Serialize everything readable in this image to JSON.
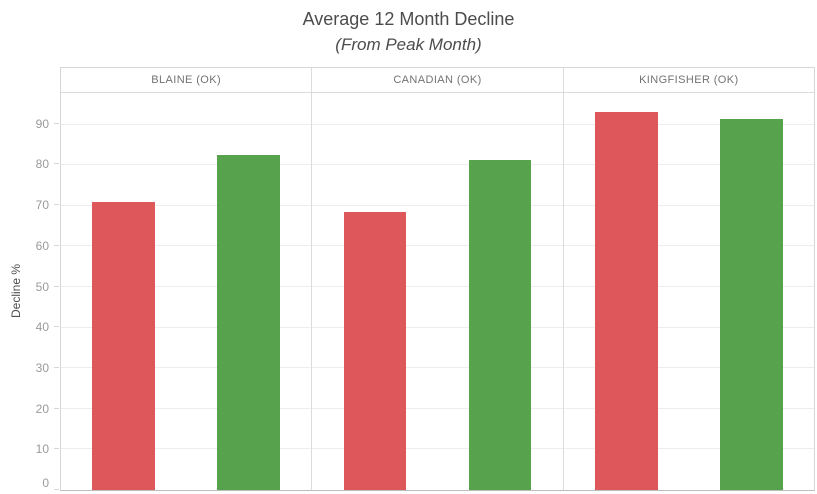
{
  "chart_data": {
    "type": "bar",
    "title": "Average 12 Month Decline",
    "subtitle": "(From Peak Month)",
    "ylabel": "Decline %",
    "xlabel": "",
    "ylim": [
      0,
      97.8
    ],
    "yticks": [
      0,
      10,
      20,
      30,
      40,
      50,
      60,
      70,
      80,
      90
    ],
    "grid": true,
    "legend_position": "none",
    "panels": [
      "BLAINE (OK)",
      "CANADIAN (OK)",
      "KINGFISHER (OK)"
    ],
    "series": [
      {
        "name": "red",
        "color": "#de575a",
        "values": [
          71.0,
          68.5,
          93.2
        ]
      },
      {
        "name": "green",
        "color": "#57a24c",
        "values": [
          82.5,
          81.2,
          91.4
        ]
      }
    ]
  }
}
